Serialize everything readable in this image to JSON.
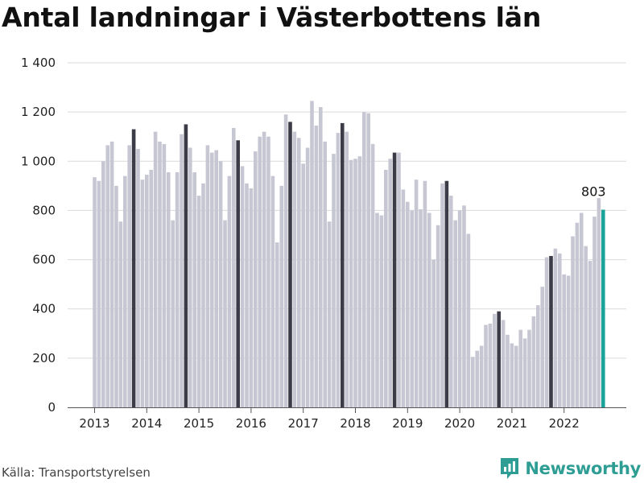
{
  "title": "Antal landningar i Västerbottens län",
  "source": "Källa: Transportstyrelsen",
  "brand": "Newsworthy",
  "colors": {
    "normal": "#c7c7d3",
    "highlight_month": "#3c3c48",
    "latest": "#1aa39a",
    "grid": "#d9d9d9",
    "brand": "#2e9e95"
  },
  "chart_data": {
    "type": "bar",
    "title": "Antal landningar i Västerbottens län",
    "xlabel": "",
    "ylabel": "",
    "ylim": [
      0,
      1400
    ],
    "yticks": [
      0,
      200,
      400,
      600,
      800,
      1000,
      1200,
      1400
    ],
    "ytick_labels": [
      "0",
      "200",
      "400",
      "600",
      "800",
      "1 000",
      "1 200",
      "1 400"
    ],
    "x_tick_labels": [
      "2013",
      "2014",
      "2015",
      "2016",
      "2017",
      "2018",
      "2019",
      "2020",
      "2021",
      "2022"
    ],
    "grid": true,
    "start": "2013-01",
    "highlight_month": 10,
    "annotation": {
      "month": "2022-10",
      "label": "803"
    },
    "values": [
      935,
      920,
      1000,
      1065,
      1080,
      900,
      755,
      940,
      1065,
      1130,
      1050,
      925,
      945,
      965,
      1120,
      1080,
      1070,
      955,
      760,
      955,
      1110,
      1150,
      1055,
      955,
      860,
      910,
      1065,
      1035,
      1045,
      1000,
      760,
      940,
      1135,
      1085,
      980,
      910,
      890,
      1040,
      1100,
      1120,
      1100,
      940,
      670,
      900,
      1190,
      1160,
      1120,
      1095,
      990,
      1055,
      1245,
      1145,
      1220,
      1080,
      755,
      1030,
      1115,
      1155,
      1120,
      1005,
      1010,
      1020,
      1200,
      1195,
      1070,
      790,
      780,
      965,
      1010,
      1035,
      1035,
      885,
      835,
      800,
      925,
      805,
      920,
      790,
      600,
      740,
      910,
      920,
      860,
      760,
      800,
      820,
      705,
      205,
      230,
      250,
      335,
      340,
      380,
      390,
      355,
      295,
      260,
      250,
      315,
      280,
      315,
      370,
      415,
      490,
      610,
      615,
      645,
      625,
      540,
      535,
      695,
      750,
      790,
      655,
      595,
      775,
      850,
      803
    ]
  }
}
